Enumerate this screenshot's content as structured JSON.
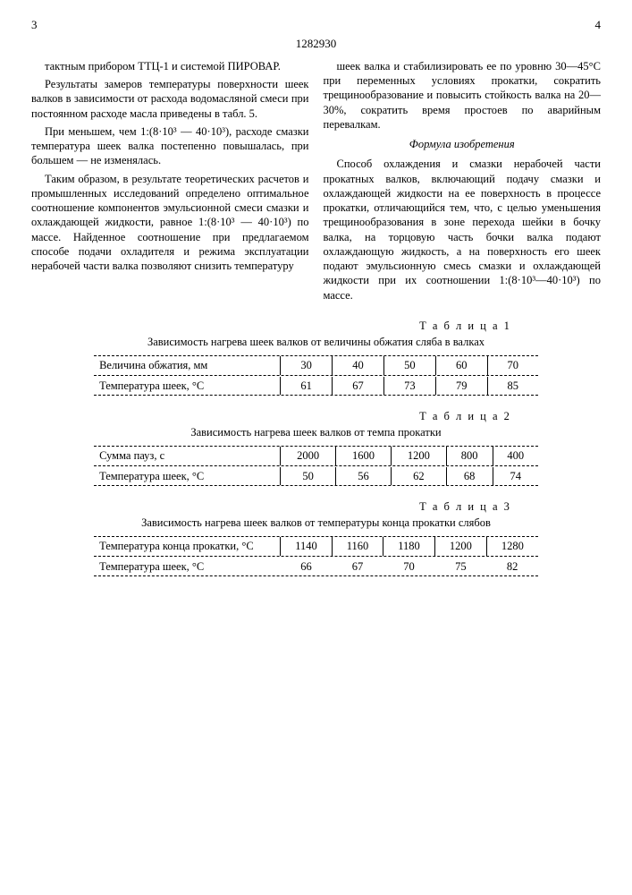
{
  "doc_number": "1282930",
  "page_left": "3",
  "page_right": "4",
  "col_left_paragraphs": [
    "тактным прибором ТТЦ-1 и системой ПИРОВАР.",
    "Результаты замеров температуры поверхности шеек валков в зависимости от расхода водомасляной смеси при постоянном расходе масла приведены в табл. 5.",
    "При меньшем, чем 1:(8·10³ — 40·10³), расходе смазки температура шеек валка постепенно повышалась, при большем — не изменялась.",
    "Таким образом, в результате теоретических расчетов и промышленных исследований определено оптимальное соотношение компонентов эмульсионной смеси смазки и охлаждающей жидкости, равное 1:(8·10³ — 40·10³) по массе. Найденное соотношение при предлагаемом способе подачи охладителя и режима эксплуатации нерабочей части валка позволяют снизить температуру"
  ],
  "col_right_paragraphs_top": [
    "шеек валка и стабилизировать ее по уровню 30—45°С при переменных условиях прокатки, сократить трещинообразование и повысить стойкость валка на 20—30%, сократить время простоев по аварийным перевалкам."
  ],
  "formula_title": "Формула изобретения",
  "col_right_paragraphs_bottom": [
    "Способ охлаждения и смазки нерабочей части прокатных валков, включающий подачу смазки и охлаждающей жидкости на ее поверхность в процессе прокатки, отличающийся тем, что, с целью уменьшения трещинообразования в зоне перехода шейки в бочку валка, на торцовую часть бочки валка подают охлаждающую жидкость, а на поверхность его шеек подают эмульсионную смесь смазки и охлаждающей жидкости при их соотношении 1:(8·10³—40·10³) по массе."
  ],
  "tables": {
    "t1": {
      "label": "Т а б л и ц а   1",
      "caption": "Зависимость нагрева шеек валков от величины обжатия сляба в валках",
      "rows": [
        {
          "label": "Величина обжатия, мм",
          "cells": [
            "30",
            "40",
            "50",
            "60",
            "70"
          ]
        },
        {
          "label": "Температура шеек, °С",
          "cells": [
            "61",
            "67",
            "73",
            "79",
            "85"
          ]
        }
      ]
    },
    "t2": {
      "label": "Т а б л и ц а   2",
      "caption": "Зависимость нагрева шеек валков от темпа прокатки",
      "rows": [
        {
          "label": "Сумма пауз, с",
          "cells": [
            "2000",
            "1600",
            "1200",
            "800",
            "400"
          ]
        },
        {
          "label": "Температура шеек, °С",
          "cells": [
            "50",
            "56",
            "62",
            "68",
            "74"
          ]
        }
      ]
    },
    "t3": {
      "label": "Т а б л и ц а   3",
      "caption": "Зависимость нагрева шеек валков от температуры конца прокатки слябов",
      "rows": [
        {
          "label": "Температура конца прокатки, °С",
          "cells": [
            "1140",
            "1160",
            "1180",
            "1200",
            "1280"
          ]
        },
        {
          "label": "Температура шеек, °С",
          "cells": [
            "66",
            "67",
            "70",
            "75",
            "82"
          ]
        }
      ]
    }
  }
}
